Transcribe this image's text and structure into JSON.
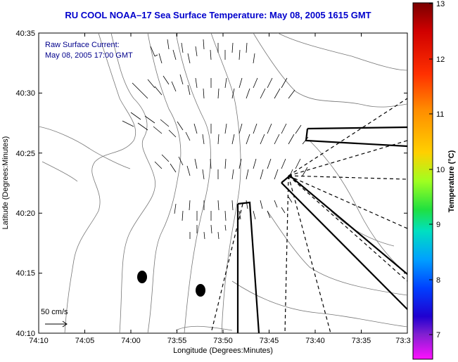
{
  "title": "RU COOL  NOAA–17  Sea Surface Temperature:  May 08, 2005 1615 GMT",
  "annotation": {
    "line1": "Raw Surface Current:",
    "line2": "May 08, 2005 17:00 GMT"
  },
  "scale_label": "50 cm/s",
  "x_axis": {
    "label": "Longitude (Degrees:Minutes)",
    "ticks": [
      "74:10",
      "74:05",
      "74:00",
      "73:55",
      "73:50",
      "73:45",
      "73:40",
      "73:35",
      "73:3"
    ]
  },
  "y_axis": {
    "label": "Latitude (Degrees:Minutes)",
    "ticks": [
      "40:35",
      "40:30",
      "40:25",
      "40:20",
      "40:15",
      "40:10"
    ]
  },
  "colorbar": {
    "label": "Temperature (°C)",
    "ticks": [
      "13",
      "12",
      "11",
      "10",
      "9",
      "8",
      "7"
    ],
    "colors": [
      "#8b0000",
      "#ff0000",
      "#ff8c00",
      "#ffd700",
      "#7fff00",
      "#00c060",
      "#00e0e0",
      "#00a0ff",
      "#0000ff",
      "#8020c0",
      "#ff00ff"
    ]
  },
  "markers": [
    "buoy-dot",
    "buoy-dot"
  ]
}
